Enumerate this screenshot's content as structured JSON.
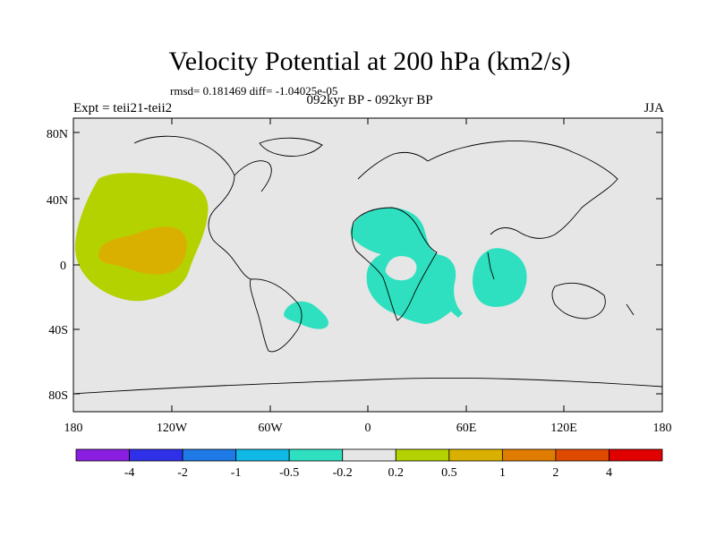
{
  "title": "Velocity Potential at 200 hPa (km2/s)",
  "stats": "rmsd= 0.181469 diff= -1.04025e-05",
  "period": "092kyr BP - 092kyr BP",
  "experiment": "Expt = teii21-teii2",
  "season": "JJA",
  "map": {
    "lat_ticks": [
      "80N",
      "40N",
      "0",
      "40S",
      "80S"
    ],
    "lon_ticks": [
      "180",
      "120W",
      "60W",
      "0",
      "60E",
      "120E",
      "180"
    ],
    "background_color": "#e6e6e6",
    "regions": [
      {
        "name": "north-pacific-positive",
        "level": "0.2 to 0.5",
        "color": "#b4d200"
      },
      {
        "name": "north-pacific-core",
        "level": "0.5 to 1",
        "color": "#d9b000"
      },
      {
        "name": "south-atlantic-negative",
        "level": "-0.5 to -0.2",
        "color": "#2ee0c0"
      },
      {
        "name": "africa-negative",
        "level": "-0.5 to -0.2",
        "color": "#2ee0c0"
      },
      {
        "name": "indian-ocean-negative",
        "level": "-0.5 to -0.2",
        "color": "#2ee0c0"
      }
    ]
  },
  "colorbar": {
    "colors": [
      "#8a1ee0",
      "#3030e8",
      "#1e7ae6",
      "#10b8e6",
      "#2ee0c0",
      "#e6e6e6",
      "#b4d200",
      "#d9b000",
      "#e07d00",
      "#e04a00",
      "#e00000"
    ],
    "labels": [
      "-4",
      "-2",
      "-1",
      "-0.5",
      "-0.2",
      "0.2",
      "0.5",
      "1",
      "2",
      "4"
    ]
  }
}
